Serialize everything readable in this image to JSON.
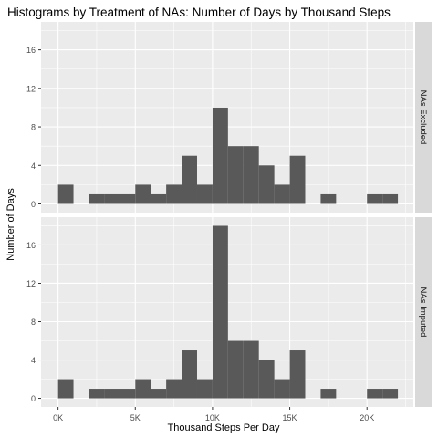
{
  "chart_data": {
    "type": "bar",
    "title": "Histograms by Treatment of NAs: Number of Days by Thousand Steps",
    "xlabel": "Thousand Steps Per Day",
    "ylabel": "Number of Days",
    "x_ticks": [
      {
        "value": 0,
        "label": "0K"
      },
      {
        "value": 5000,
        "label": "5K"
      },
      {
        "value": 10000,
        "label": "10K"
      },
      {
        "value": 15000,
        "label": "15K"
      },
      {
        "value": 20000,
        "label": "20K"
      }
    ],
    "y_ticks": [
      0,
      4,
      8,
      12,
      16
    ],
    "xlim": [
      -1100,
      23000
    ],
    "ylim": [
      -0.9,
      18.9
    ],
    "bin_width": 1000,
    "grid": true,
    "colors": {
      "panel_bg": "#ebebeb",
      "grid": "#ffffff",
      "bar": "#595959",
      "strip_bg": "#d9d9d9",
      "axis_text": "#4d4d4d"
    },
    "panels": [
      {
        "strip": "NAs Excluded",
        "bins": [
          {
            "x": 0,
            "count": 2
          },
          {
            "x": 2000,
            "count": 1
          },
          {
            "x": 3000,
            "count": 1
          },
          {
            "x": 4000,
            "count": 1
          },
          {
            "x": 5000,
            "count": 2
          },
          {
            "x": 6000,
            "count": 1
          },
          {
            "x": 7000,
            "count": 2
          },
          {
            "x": 8000,
            "count": 5
          },
          {
            "x": 9000,
            "count": 2
          },
          {
            "x": 10000,
            "count": 10
          },
          {
            "x": 11000,
            "count": 6
          },
          {
            "x": 12000,
            "count": 6
          },
          {
            "x": 13000,
            "count": 4
          },
          {
            "x": 14000,
            "count": 2
          },
          {
            "x": 15000,
            "count": 5
          },
          {
            "x": 17000,
            "count": 1
          },
          {
            "x": 20000,
            "count": 1
          },
          {
            "x": 21000,
            "count": 1
          }
        ]
      },
      {
        "strip": "NAs Imputed",
        "bins": [
          {
            "x": 0,
            "count": 2
          },
          {
            "x": 2000,
            "count": 1
          },
          {
            "x": 3000,
            "count": 1
          },
          {
            "x": 4000,
            "count": 1
          },
          {
            "x": 5000,
            "count": 2
          },
          {
            "x": 6000,
            "count": 1
          },
          {
            "x": 7000,
            "count": 2
          },
          {
            "x": 8000,
            "count": 5
          },
          {
            "x": 9000,
            "count": 2
          },
          {
            "x": 10000,
            "count": 18
          },
          {
            "x": 11000,
            "count": 6
          },
          {
            "x": 12000,
            "count": 6
          },
          {
            "x": 13000,
            "count": 4
          },
          {
            "x": 14000,
            "count": 2
          },
          {
            "x": 15000,
            "count": 5
          },
          {
            "x": 17000,
            "count": 1
          },
          {
            "x": 20000,
            "count": 1
          },
          {
            "x": 21000,
            "count": 1
          }
        ]
      }
    ]
  }
}
